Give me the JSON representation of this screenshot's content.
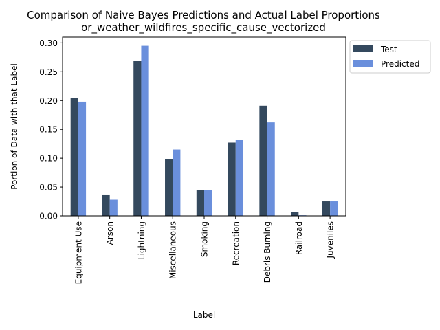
{
  "chart_data": {
    "type": "bar",
    "title": "Comparison of Naive Bayes Predictions and Actual Label Proportions",
    "subtitle": "or_weather_wildfires_specific_cause_vectorized",
    "xlabel": "Label",
    "ylabel": "Portion of Data with that Label",
    "categories": [
      "Equipment Use",
      "Arson",
      "Lightning",
      "Miscellaneous",
      "Smoking",
      "Recreation",
      "Debris Burning",
      "Railroad",
      "Juveniles"
    ],
    "series": [
      {
        "name": "Test",
        "color": "#34495e",
        "values": [
          0.205,
          0.037,
          0.269,
          0.098,
          0.045,
          0.127,
          0.191,
          0.006,
          0.025
        ]
      },
      {
        "name": "Predicted",
        "color": "#6a8fdc",
        "values": [
          0.198,
          0.028,
          0.295,
          0.115,
          0.045,
          0.132,
          0.162,
          0.001,
          0.025
        ]
      }
    ],
    "ylim": [
      0,
      0.31
    ],
    "yticks": [
      "0.00",
      "0.05",
      "0.10",
      "0.15",
      "0.20",
      "0.25",
      "0.30"
    ],
    "grid": false,
    "legend": "outside-top-right"
  }
}
